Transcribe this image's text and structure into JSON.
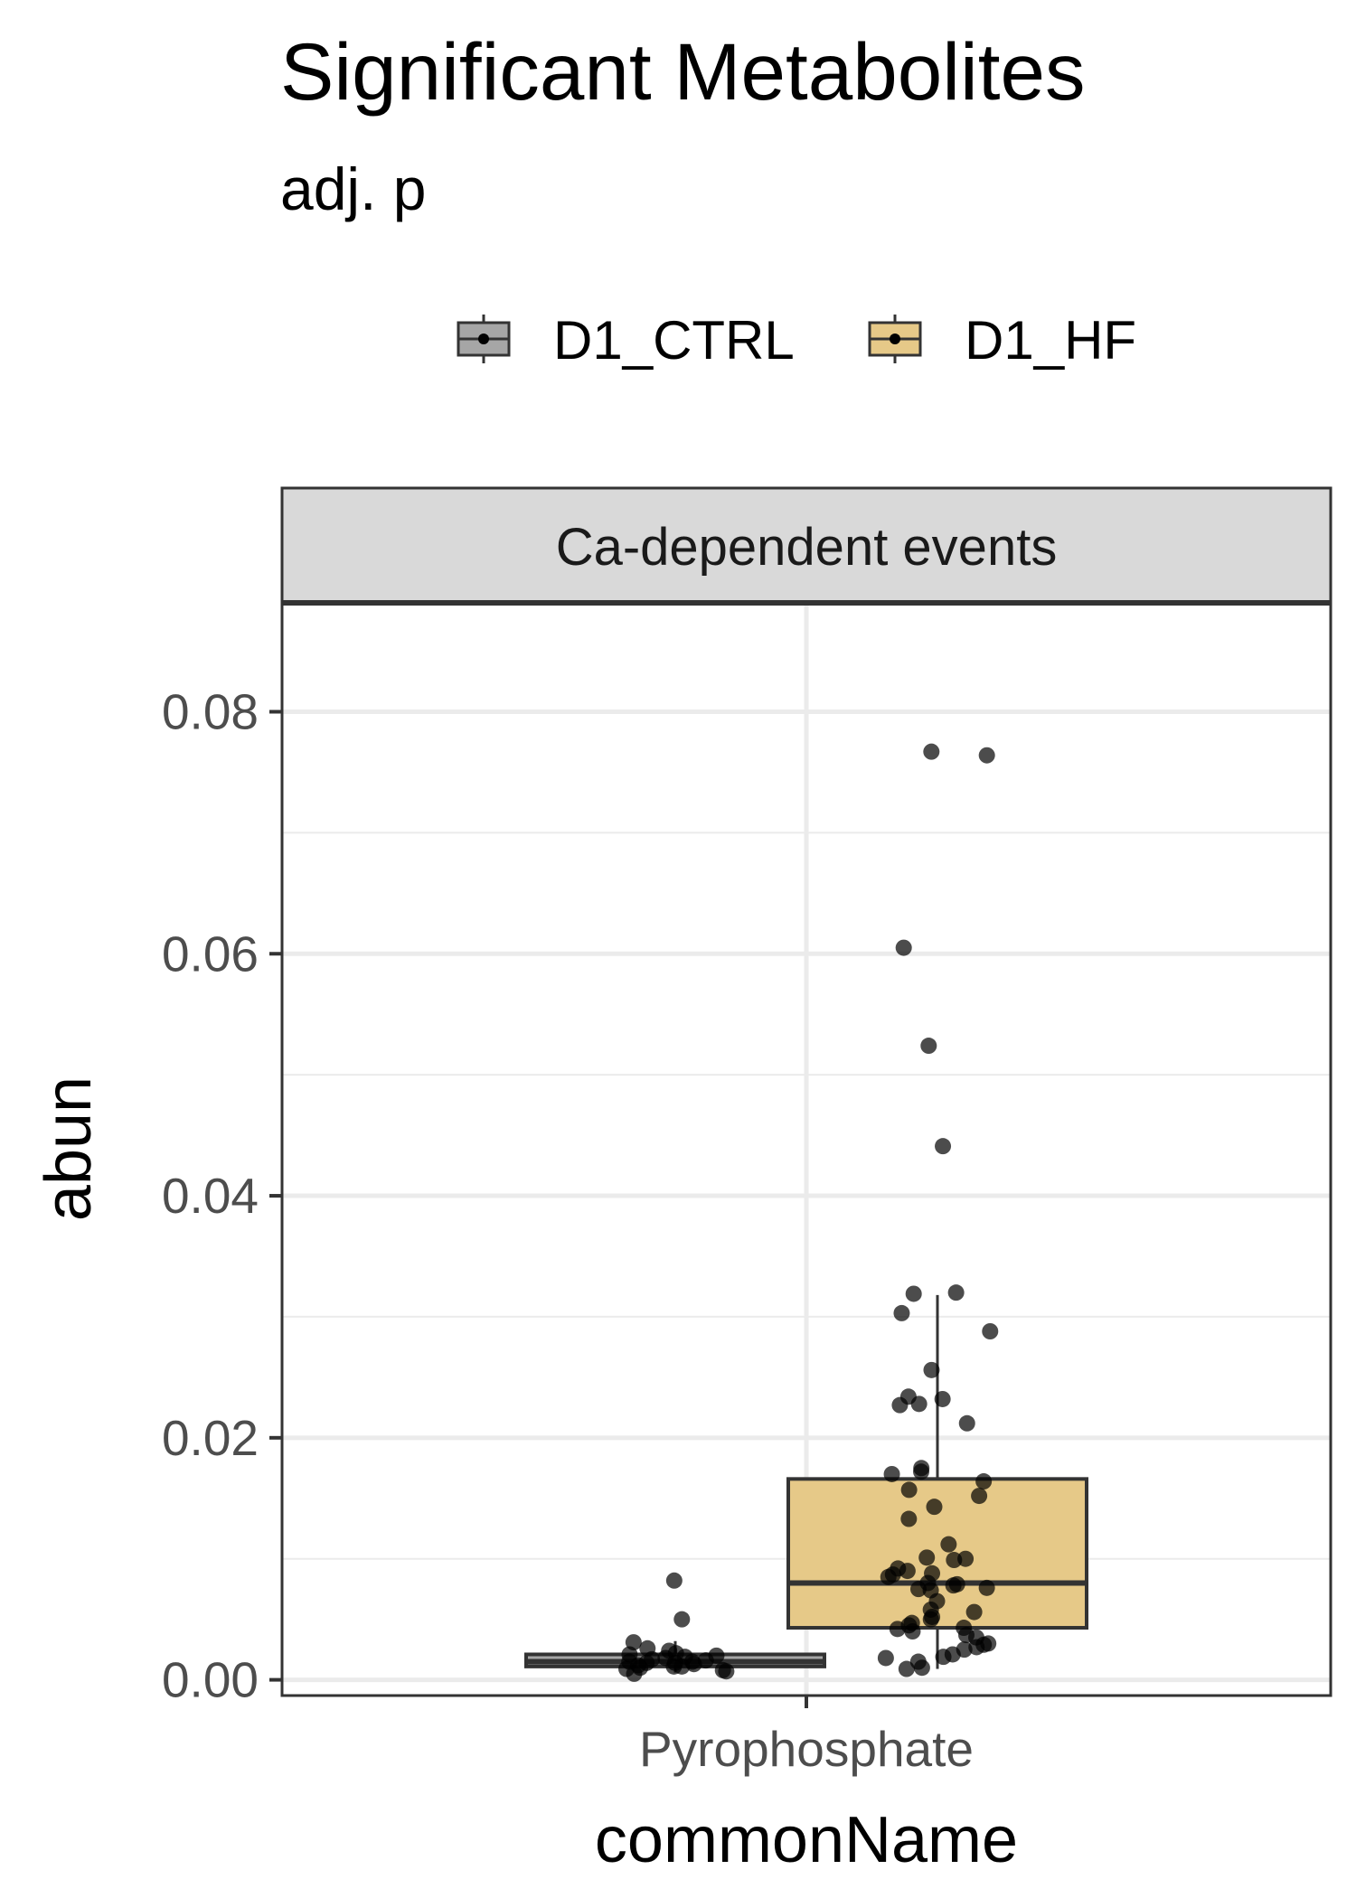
{
  "title": "Significant Metabolites",
  "subtitle": "adj. p",
  "legend": {
    "items": [
      {
        "label": "D1_CTRL",
        "color": "#a6a6a6"
      },
      {
        "label": "D1_HF",
        "color": "#e6c988"
      }
    ]
  },
  "chart_data": {
    "type": "box",
    "title": "Significant Metabolites",
    "subtitle": "adj. p",
    "facet": "Ca-dependent events",
    "xlabel": "commonName",
    "ylabel": "abun",
    "categories": [
      "Pyrophosphate"
    ],
    "ylim": [
      -0.0013,
      0.089
    ],
    "yticks": [
      "0.00",
      "0.02",
      "0.04",
      "0.06",
      "0.08"
    ],
    "grid": true,
    "legend_position": "top",
    "series": [
      {
        "name": "D1_CTRL",
        "color": "#a6a6a6",
        "box": {
          "lower_whisker": 0.0006,
          "q1": 0.0011,
          "median": 0.0015,
          "q3": 0.0021,
          "upper_whisker": 0.0032
        },
        "points": [
          0.0082,
          0.005,
          0.0031,
          0.0026,
          0.0024,
          0.0022,
          0.0021,
          0.002,
          0.0019,
          0.0018,
          0.0017,
          0.0016,
          0.0015,
          0.0015,
          0.0014,
          0.0014,
          0.0013,
          0.0012,
          0.0011,
          0.0011,
          0.001,
          0.0009,
          0.0008,
          0.0007,
          0.0005
        ]
      },
      {
        "name": "D1_HF",
        "color": "#e6c988",
        "box": {
          "lower_whisker": 0.0009,
          "q1": 0.0043,
          "median": 0.008,
          "q3": 0.0166,
          "upper_whisker": 0.0318
        },
        "points": [
          0.0767,
          0.0764,
          0.0605,
          0.0524,
          0.0441,
          0.032,
          0.0319,
          0.0303,
          0.0288,
          0.0256,
          0.0234,
          0.0232,
          0.0228,
          0.0227,
          0.0212,
          0.0175,
          0.0172,
          0.017,
          0.0164,
          0.0157,
          0.0152,
          0.0143,
          0.0133,
          0.0112,
          0.0101,
          0.01,
          0.0099,
          0.0092,
          0.009,
          0.0088,
          0.0087,
          0.0085,
          0.008,
          0.0079,
          0.0078,
          0.0076,
          0.0075,
          0.0074,
          0.0065,
          0.0058,
          0.0056,
          0.0052,
          0.005,
          0.0047,
          0.0045,
          0.0043,
          0.0042,
          0.004,
          0.0037,
          0.0035,
          0.003,
          0.0029,
          0.0027,
          0.0025,
          0.0021,
          0.0019,
          0.0018,
          0.0015,
          0.001,
          0.0009
        ]
      }
    ]
  }
}
